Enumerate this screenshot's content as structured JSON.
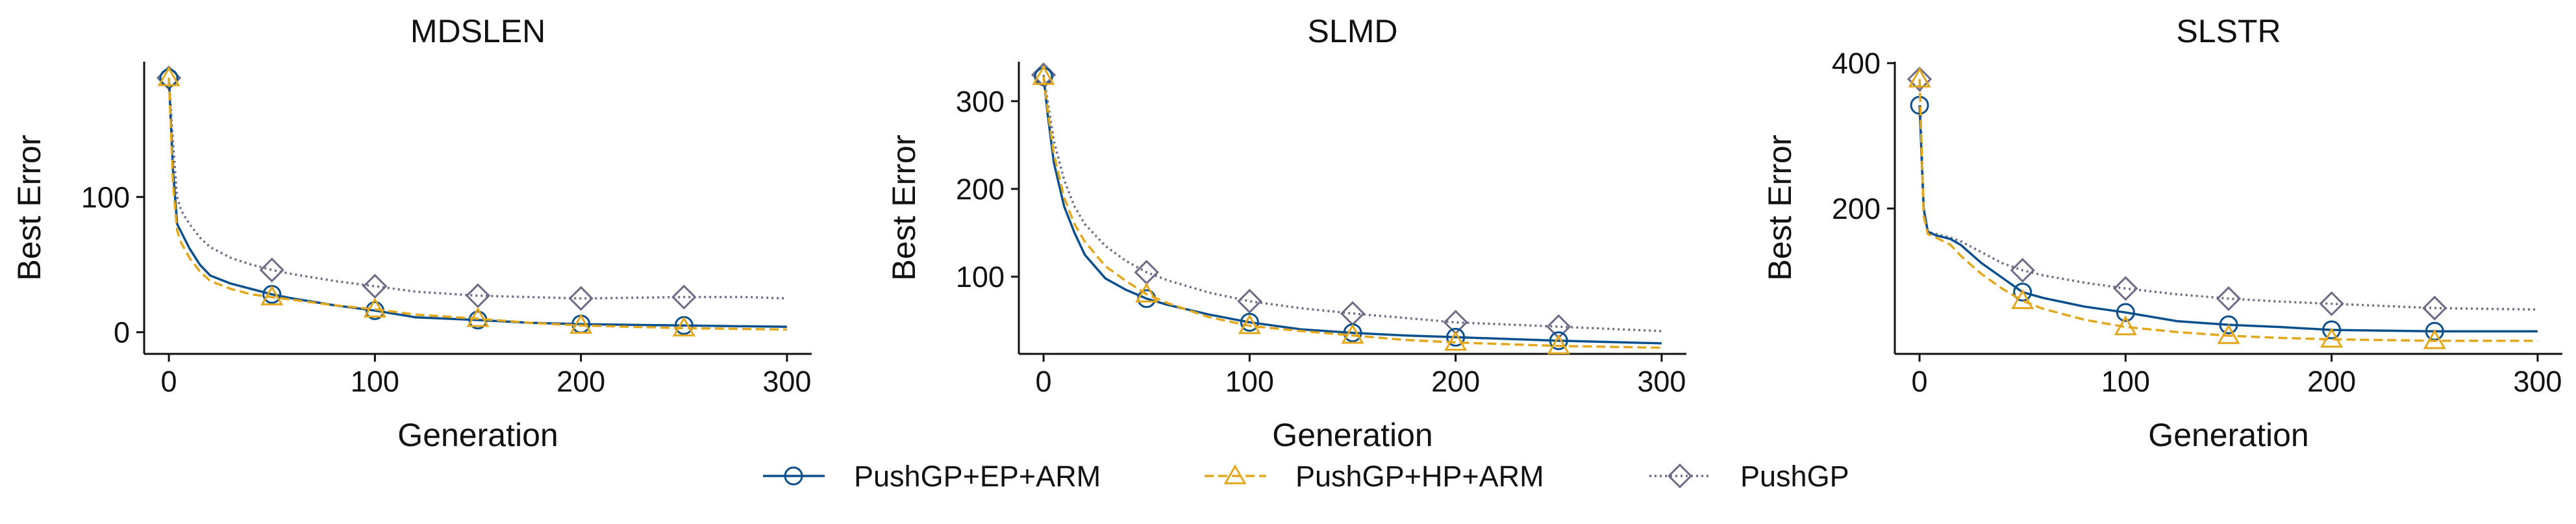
{
  "chart_data": [
    {
      "type": "line",
      "title": "MDSLEN",
      "xlabel": "Generation",
      "ylabel": "Best Error",
      "xlim": [
        -12,
        312
      ],
      "ylim": [
        -16,
        200
      ],
      "xticks": [
        0,
        100,
        200,
        300
      ],
      "yticks": [
        0,
        100
      ],
      "grid": false,
      "series": [
        {
          "name": "PushGP+EP+ARM",
          "color": "#0b4f8c",
          "dash": "solid",
          "marker": "circle",
          "x": [
            0,
            2,
            4,
            6,
            10,
            15,
            20,
            30,
            40,
            50,
            60,
            80,
            100,
            120,
            150,
            175,
            200,
            250,
            300
          ],
          "values": [
            188,
            120,
            80,
            74,
            62,
            50,
            42,
            36,
            32,
            28,
            25,
            20,
            16,
            11,
            9,
            7,
            6,
            5,
            4
          ],
          "markers_x": [
            0,
            50,
            100,
            150,
            200,
            250
          ]
        },
        {
          "name": "PushGP+HP+ARM",
          "color": "#e3a71c",
          "dash": "dashed",
          "marker": "triangle",
          "x": [
            0,
            2,
            4,
            6,
            10,
            15,
            20,
            30,
            40,
            50,
            60,
            80,
            100,
            120,
            150,
            175,
            200,
            250,
            300
          ],
          "values": [
            188,
            110,
            75,
            66,
            55,
            45,
            38,
            32,
            28,
            26,
            24,
            20,
            17,
            13,
            10,
            7,
            5,
            3,
            2
          ],
          "markers_x": [
            0,
            50,
            100,
            150,
            200,
            250
          ]
        },
        {
          "name": "PushGP",
          "color": "#6b6b86",
          "dash": "dotted",
          "marker": "diamond",
          "x": [
            0,
            2,
            4,
            6,
            10,
            15,
            20,
            30,
            40,
            50,
            60,
            80,
            100,
            120,
            150,
            175,
            200,
            250,
            280,
            300
          ],
          "values": [
            188,
            140,
            100,
            90,
            80,
            70,
            63,
            55,
            50,
            46,
            43,
            38,
            34,
            30,
            27,
            26,
            25,
            26,
            26,
            25
          ],
          "markers_x": [
            0,
            50,
            100,
            150,
            200,
            250
          ]
        }
      ]
    },
    {
      "type": "line",
      "title": "SLMD",
      "xlabel": "Generation",
      "ylabel": "Best Error",
      "xlim": [
        -12,
        312
      ],
      "ylim": [
        12,
        345
      ],
      "xticks": [
        0,
        100,
        200,
        300
      ],
      "yticks": [
        100,
        200,
        300
      ],
      "grid": false,
      "series": [
        {
          "name": "PushGP+EP+ARM",
          "color": "#0b4f8c",
          "dash": "solid",
          "marker": "circle",
          "x": [
            0,
            2,
            5,
            10,
            15,
            20,
            30,
            40,
            50,
            60,
            80,
            100,
            125,
            150,
            175,
            200,
            250,
            300
          ],
          "values": [
            328,
            285,
            230,
            180,
            150,
            125,
            98,
            85,
            75,
            68,
            57,
            48,
            40,
            36,
            33,
            31,
            27,
            24
          ],
          "markers_x": [
            0,
            50,
            100,
            150,
            200,
            250
          ]
        },
        {
          "name": "PushGP+HP+ARM",
          "color": "#e3a71c",
          "dash": "dashed",
          "marker": "triangle",
          "x": [
            0,
            2,
            5,
            10,
            15,
            20,
            30,
            40,
            50,
            60,
            80,
            100,
            125,
            150,
            175,
            200,
            250,
            300
          ],
          "values": [
            328,
            290,
            240,
            190,
            160,
            140,
            112,
            95,
            80,
            70,
            54,
            44,
            38,
            33,
            28,
            25,
            21,
            19
          ],
          "markers_x": [
            0,
            50,
            100,
            150,
            200,
            250
          ]
        },
        {
          "name": "PushGP",
          "color": "#6b6b86",
          "dash": "dotted",
          "marker": "diamond",
          "x": [
            0,
            2,
            5,
            10,
            15,
            20,
            30,
            40,
            50,
            60,
            80,
            100,
            125,
            150,
            175,
            200,
            250,
            300
          ],
          "values": [
            330,
            300,
            255,
            210,
            180,
            160,
            135,
            118,
            105,
            96,
            82,
            72,
            64,
            58,
            53,
            48,
            43,
            38
          ],
          "markers_x": [
            0,
            50,
            100,
            150,
            200,
            250
          ]
        }
      ]
    },
    {
      "type": "line",
      "title": "SLSTR",
      "xlabel": "Generation",
      "ylabel": "Best Error",
      "xlim": [
        -12,
        312
      ],
      "ylim": [
        0,
        402
      ],
      "xticks": [
        0,
        100,
        200,
        300
      ],
      "yticks": [
        200,
        400
      ],
      "grid": false,
      "series": [
        {
          "name": "PushGP+EP+ARM",
          "color": "#0b4f8c",
          "dash": "solid",
          "marker": "circle",
          "x": [
            0,
            2,
            4,
            8,
            15,
            20,
            30,
            40,
            50,
            60,
            80,
            100,
            125,
            150,
            175,
            200,
            250,
            300
          ],
          "values": [
            342,
            200,
            168,
            163,
            158,
            150,
            125,
            105,
            85,
            77,
            65,
            57,
            45,
            40,
            37,
            33,
            31,
            31
          ],
          "markers_x": [
            0,
            50,
            100,
            150,
            200,
            250
          ]
        },
        {
          "name": "PushGP+HP+ARM",
          "color": "#e3a71c",
          "dash": "dashed",
          "marker": "triangle",
          "x": [
            0,
            2,
            4,
            8,
            15,
            20,
            30,
            40,
            50,
            60,
            80,
            100,
            125,
            150,
            175,
            200,
            250,
            300
          ],
          "values": [
            378,
            190,
            165,
            160,
            150,
            135,
            110,
            90,
            73,
            62,
            47,
            37,
            30,
            25,
            22,
            20,
            18,
            18
          ],
          "markers_x": [
            0,
            50,
            100,
            150,
            200,
            250
          ]
        },
        {
          "name": "PushGP",
          "color": "#6b6b86",
          "dash": "dotted",
          "marker": "diamond",
          "x": [
            0,
            2,
            4,
            8,
            15,
            20,
            30,
            40,
            50,
            60,
            80,
            100,
            125,
            150,
            175,
            200,
            250,
            300
          ],
          "values": [
            378,
            200,
            168,
            165,
            160,
            155,
            140,
            125,
            115,
            108,
            98,
            90,
            82,
            76,
            72,
            69,
            63,
            61
          ],
          "markers_x": [
            0,
            50,
            100,
            150,
            200,
            250
          ]
        }
      ]
    }
  ],
  "legend": {
    "placement": "bottom-center",
    "entries": [
      {
        "label": "PushGP+EP+ARM",
        "color": "#0b4f8c",
        "dash": "solid",
        "marker": "circle"
      },
      {
        "label": "PushGP+HP+ARM",
        "color": "#e3a71c",
        "dash": "dashed",
        "marker": "triangle"
      },
      {
        "label": "PushGP",
        "color": "#6b6b86",
        "dash": "dotted",
        "marker": "diamond"
      }
    ]
  }
}
